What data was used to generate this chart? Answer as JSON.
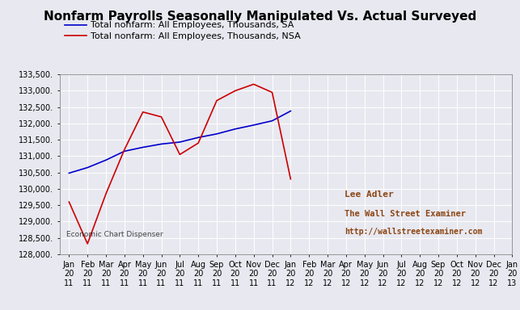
{
  "title": "Nonfarm Payrolls Seasonally Manipulated Vs. Actual Surveyed",
  "legend_sa": "Total nonfarm: All Employees, Thousands, SA",
  "legend_nsa": "Total nonfarm: All Employees, Thousands, NSA",
  "watermark1": "Economic Chart Dispenser",
  "watermark2": "Lee Adler",
  "watermark3": "The Wall Street Examiner",
  "watermark4": "http://wallstreetexaminer.com",
  "ylim": [
    128000,
    133500
  ],
  "yticks": [
    128000,
    128500,
    129000,
    129500,
    130000,
    130500,
    131000,
    131500,
    132000,
    132500,
    133000,
    133500
  ],
  "x_labels": [
    "Jan\n20\n11",
    "Feb\n20\n11",
    "Mar\n20\n11",
    "Apr\n20\n11",
    "May\n20\n11",
    "Jun\n20\n11",
    "Jul\n20\n11",
    "Aug\n20\n11",
    "Sep\n20\n11",
    "Oct\n20\n11",
    "Nov\n20\n11",
    "Dec\n20\n11",
    "Jan\n20\n12",
    "Feb\n20\n12",
    "Mar\n20\n12",
    "Apr\n20\n12",
    "May\n20\n12",
    "Jun\n20\n12",
    "Jul\n20\n12",
    "Aug\n20\n12",
    "Sep\n20\n12",
    "Oct\n20\n12",
    "Nov\n20\n12",
    "Dec\n20\n12",
    "Jan\n20\n13"
  ],
  "sa_x": [
    0,
    1,
    2,
    3,
    4,
    5,
    6,
    7,
    8,
    9,
    10,
    11,
    12
  ],
  "sa_y": [
    130480,
    130650,
    130880,
    131150,
    131270,
    131370,
    131430,
    131570,
    131680,
    131830,
    131950,
    132080,
    132380
  ],
  "nsa_x": [
    0,
    1,
    2,
    3,
    4,
    5,
    6,
    7,
    8,
    9,
    10,
    11,
    12
  ],
  "nsa_y": [
    129600,
    128320,
    129850,
    131200,
    132350,
    132200,
    131050,
    131400,
    132700,
    133000,
    133200,
    132950,
    130300
  ],
  "sa_color": "#0000cc",
  "nsa_color": "#cc0000",
  "bg_color": "#e8e8f0",
  "grid_color": "#ffffff",
  "title_fontsize": 11,
  "legend_fontsize": 8,
  "tick_fontsize": 7,
  "annotation_color": "#8B4513"
}
